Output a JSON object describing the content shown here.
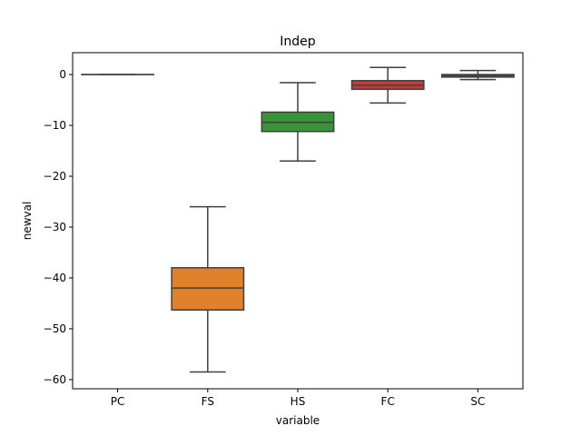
{
  "chart_data": {
    "type": "box",
    "title": "Indep",
    "xlabel": "variable",
    "ylabel": "newval",
    "ylim": [
      -61.8,
      4.3
    ],
    "yticks": [
      0,
      -10,
      -20,
      -30,
      -40,
      -50,
      -60
    ],
    "ytick_labels": [
      "0",
      "−10",
      "−20",
      "−30",
      "−40",
      "−50",
      "−60"
    ],
    "grid": false,
    "categories": [
      "PC",
      "FS",
      "HS",
      "FC",
      "SC"
    ],
    "boxes": [
      {
        "category": "PC",
        "whisker_low": 0.0,
        "q1": 0.0,
        "median": 0.0,
        "q3": 0.0,
        "whisker_high": 0.0,
        "color": "#3274a1"
      },
      {
        "category": "FS",
        "whisker_low": -58.5,
        "q1": -46.3,
        "median": -42.0,
        "q3": -38.0,
        "whisker_high": -26.0,
        "color": "#e1812c"
      },
      {
        "category": "HS",
        "whisker_low": -17.0,
        "q1": -11.2,
        "median": -9.4,
        "q3": -7.4,
        "whisker_high": -1.6,
        "color": "#3a923a"
      },
      {
        "category": "FC",
        "whisker_low": -5.6,
        "q1": -2.9,
        "median": -2.1,
        "q3": -1.2,
        "whisker_high": 1.4,
        "color": "#c03d3e"
      },
      {
        "category": "SC",
        "whisker_low": -1.0,
        "q1": -0.5,
        "median": -0.2,
        "q3": 0.0,
        "whisker_high": 0.8,
        "color": "#9372b2"
      }
    ]
  }
}
